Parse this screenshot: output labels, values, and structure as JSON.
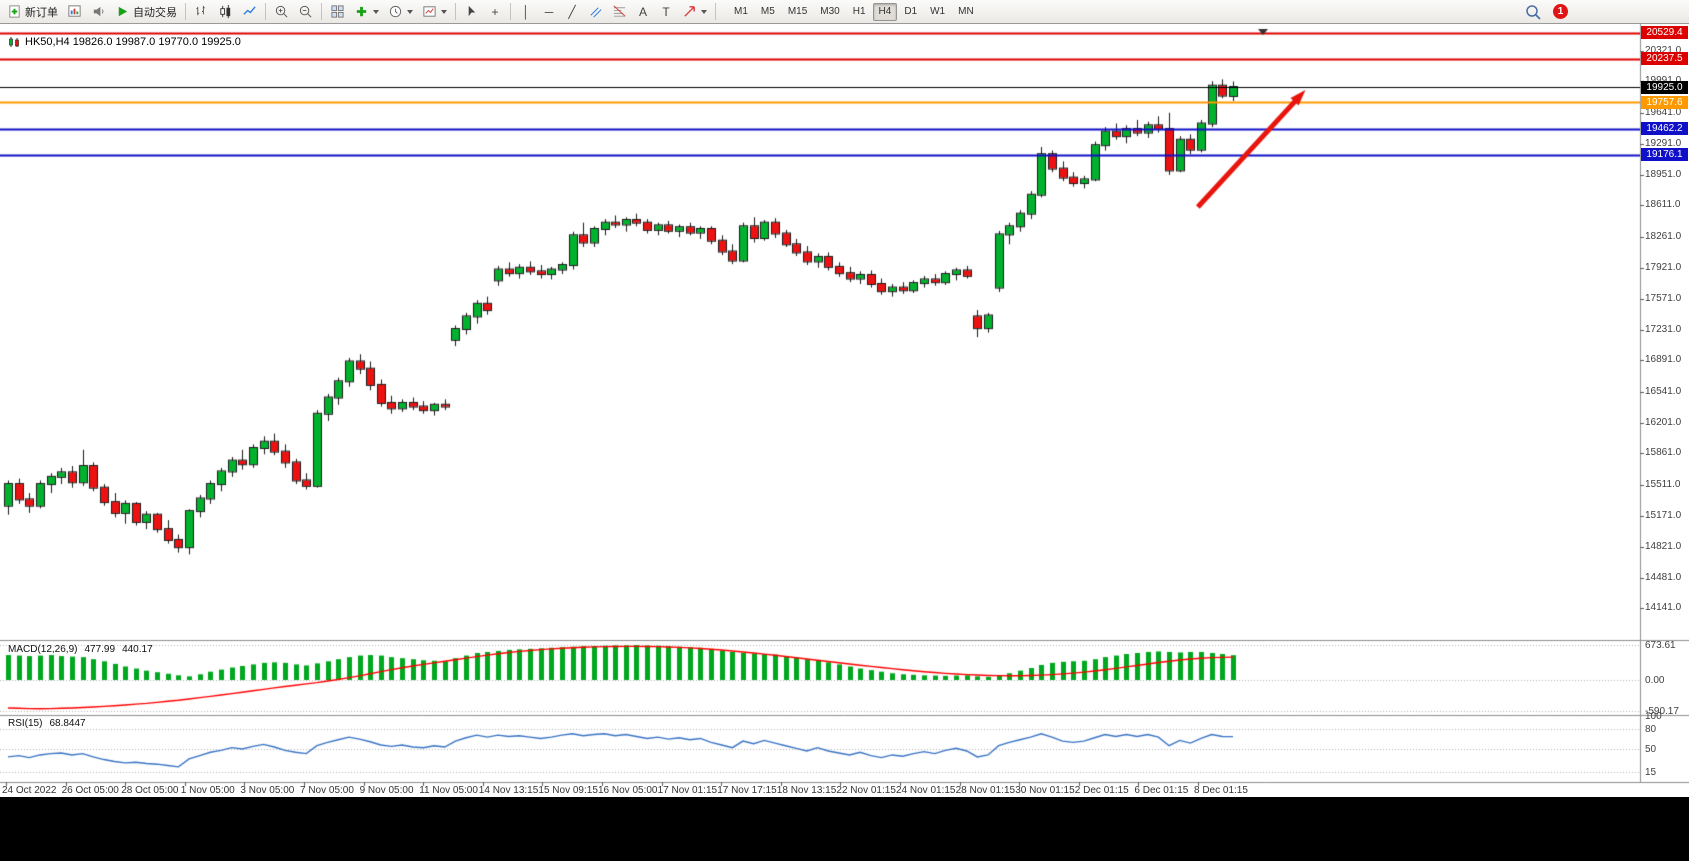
{
  "toolbar": {
    "new_order": "新订单",
    "autotrade": "自动交易",
    "timeframes": [
      "M1",
      "M5",
      "M15",
      "M30",
      "H1",
      "H4",
      "D1",
      "W1",
      "MN"
    ],
    "active_timeframe": "H4",
    "notification": "1",
    "glyphs": {
      "vertical_line": "│",
      "horizontal_line": "─",
      "trendline": "╱",
      "crosshair": "+",
      "text": "A",
      "text_label": "T"
    }
  },
  "chart": {
    "title": "HK50,H4 19826.0 19987.0 19770.0 19925.0",
    "symbol": "HK50",
    "period": "H4",
    "open": "19826.0",
    "high": "19987.0",
    "low": "19770.0",
    "close": "19925.0"
  },
  "chart_data": {
    "type": "candlestick",
    "symbol": "HK50",
    "timeframe": "H4",
    "y_range": [
      13790,
      20580
    ],
    "colors": {
      "bull": "#00b22d",
      "bear": "#ee1111",
      "wick": "#1a1a1a",
      "macd_hist": "#00a81f",
      "macd_signal": "#ff0000",
      "rsi": "#3973c4",
      "resistance": "#dd0000",
      "support": "#1010c8",
      "pivot": "#ff9900",
      "current": "#000000"
    },
    "price_ticks": [
      "20321.0",
      "19991.0",
      "19641.0",
      "19291.0",
      "18951.0",
      "18611.0",
      "18261.0",
      "17921.0",
      "17571.0",
      "17231.0",
      "16891.0",
      "16541.0",
      "16201.0",
      "15861.0",
      "15511.0",
      "15171.0",
      "14821.0",
      "14481.0",
      "14141.0"
    ],
    "time_labels": [
      "24 Oct 2022",
      "26 Oct 05:00",
      "28 Oct 05:00",
      "1 Nov 05:00",
      "3 Nov 05:00",
      "7 Nov 05:00",
      "9 Nov 05:00",
      "11 Nov 05:00",
      "14 Nov 13:15",
      "15 Nov 09:15",
      "16 Nov 05:00",
      "17 Nov 01:15",
      "17 Nov 17:15",
      "18 Nov 13:15",
      "22 Nov 01:15",
      "24 Nov 01:15",
      "28 Nov 01:15",
      "30 Nov 01:15",
      "2 Dec 01:15",
      "6 Dec 01:15",
      "8 Dec 01:15"
    ],
    "hlines": [
      {
        "price": 20529.4,
        "label": "20529.4",
        "color": "#dd0000",
        "width": 2
      },
      {
        "price": 20237.5,
        "label": "20237.5",
        "color": "#dd0000",
        "width": 2
      },
      {
        "price": 19925.0,
        "label": "19925.0",
        "color": "#000000",
        "width": 1
      },
      {
        "price": 19757.6,
        "label": "19757.6",
        "color": "#ff9900",
        "width": 2
      },
      {
        "price": 19462.2,
        "label": "19462.2",
        "color": "#1010c8",
        "width": 2
      },
      {
        "price": 19176.1,
        "label": "19176.1",
        "color": "#1010c8",
        "width": 2
      }
    ],
    "annotations": [
      {
        "type": "arrow",
        "from_index": 111.7,
        "from_price": 18594,
        "to_index": 121.8,
        "to_price": 19892,
        "color": "#e8150d"
      }
    ],
    "candles": [
      [
        15280,
        15560,
        15180,
        15520
      ],
      [
        15520,
        15580,
        15300,
        15350
      ],
      [
        15350,
        15420,
        15200,
        15280
      ],
      [
        15280,
        15560,
        15250,
        15520
      ],
      [
        15520,
        15640,
        15420,
        15600
      ],
      [
        15600,
        15700,
        15520,
        15650
      ],
      [
        15650,
        15720,
        15480,
        15540
      ],
      [
        15540,
        15900,
        15500,
        15720
      ],
      [
        15720,
        15760,
        15440,
        15480
      ],
      [
        15480,
        15520,
        15280,
        15320
      ],
      [
        15320,
        15420,
        15150,
        15200
      ],
      [
        15200,
        15340,
        15080,
        15300
      ],
      [
        15300,
        15320,
        15060,
        15100
      ],
      [
        15100,
        15220,
        15020,
        15180
      ],
      [
        15180,
        15200,
        14980,
        15020
      ],
      [
        15020,
        15120,
        14860,
        14900
      ],
      [
        14900,
        14960,
        14760,
        14820
      ],
      [
        14820,
        15240,
        14740,
        15220
      ],
      [
        15220,
        15400,
        15150,
        15360
      ],
      [
        15360,
        15560,
        15300,
        15520
      ],
      [
        15520,
        15700,
        15440,
        15660
      ],
      [
        15660,
        15820,
        15600,
        15780
      ],
      [
        15780,
        15900,
        15680,
        15740
      ],
      [
        15740,
        15960,
        15700,
        15920
      ],
      [
        15920,
        16050,
        15850,
        15990
      ],
      [
        15990,
        16080,
        15840,
        15880
      ],
      [
        15880,
        15960,
        15700,
        15760
      ],
      [
        15760,
        15800,
        15520,
        15560
      ],
      [
        15560,
        15640,
        15460,
        15500
      ],
      [
        15500,
        16340,
        15480,
        16300
      ],
      [
        16300,
        16520,
        16220,
        16480
      ],
      [
        16480,
        16700,
        16400,
        16660
      ],
      [
        16660,
        16920,
        16600,
        16880
      ],
      [
        16880,
        16960,
        16740,
        16800
      ],
      [
        16800,
        16880,
        16560,
        16620
      ],
      [
        16620,
        16680,
        16380,
        16420
      ],
      [
        16420,
        16500,
        16300,
        16360
      ],
      [
        16360,
        16460,
        16320,
        16420
      ],
      [
        16420,
        16480,
        16340,
        16380
      ],
      [
        16380,
        16440,
        16300,
        16340
      ],
      [
        16340,
        16420,
        16280,
        16400
      ],
      [
        16400,
        16460,
        16340,
        16380
      ],
      [
        17120,
        17280,
        17050,
        17240
      ],
      [
        17240,
        17420,
        17180,
        17380
      ],
      [
        17380,
        17560,
        17300,
        17520
      ],
      [
        17520,
        17600,
        17400,
        17450
      ],
      [
        17780,
        17940,
        17720,
        17900
      ],
      [
        17900,
        17980,
        17820,
        17860
      ],
      [
        17860,
        17960,
        17800,
        17920
      ],
      [
        17920,
        17990,
        17840,
        17880
      ],
      [
        17880,
        17950,
        17800,
        17850
      ],
      [
        17850,
        17930,
        17790,
        17900
      ],
      [
        17900,
        17980,
        17850,
        17950
      ],
      [
        17950,
        18320,
        17900,
        18280
      ],
      [
        18280,
        18420,
        18150,
        18200
      ],
      [
        18200,
        18380,
        18150,
        18350
      ],
      [
        18350,
        18460,
        18280,
        18420
      ],
      [
        18420,
        18500,
        18360,
        18400
      ],
      [
        18400,
        18480,
        18320,
        18450
      ],
      [
        18450,
        18520,
        18380,
        18420
      ],
      [
        18420,
        18460,
        18300,
        18340
      ],
      [
        18340,
        18420,
        18280,
        18390
      ],
      [
        18390,
        18440,
        18300,
        18330
      ],
      [
        18330,
        18400,
        18260,
        18370
      ],
      [
        18370,
        18420,
        18280,
        18310
      ],
      [
        18310,
        18380,
        18240,
        18350
      ],
      [
        18350,
        18380,
        18180,
        18220
      ],
      [
        18220,
        18280,
        18060,
        18100
      ],
      [
        18100,
        18180,
        17960,
        18000
      ],
      [
        18000,
        18420,
        17980,
        18380
      ],
      [
        18380,
        18480,
        18200,
        18250
      ],
      [
        18250,
        18450,
        18220,
        18420
      ],
      [
        18420,
        18470,
        18250,
        18300
      ],
      [
        18300,
        18340,
        18150,
        18180
      ],
      [
        18180,
        18240,
        18050,
        18090
      ],
      [
        18090,
        18160,
        17950,
        17990
      ],
      [
        17990,
        18080,
        17920,
        18040
      ],
      [
        18040,
        18090,
        17890,
        17930
      ],
      [
        17930,
        17980,
        17820,
        17860
      ],
      [
        17860,
        17930,
        17760,
        17800
      ],
      [
        17800,
        17880,
        17740,
        17840
      ],
      [
        17840,
        17890,
        17700,
        17740
      ],
      [
        17740,
        17800,
        17620,
        17660
      ],
      [
        17660,
        17740,
        17600,
        17700
      ],
      [
        17700,
        17760,
        17630,
        17670
      ],
      [
        17670,
        17780,
        17640,
        17750
      ],
      [
        17750,
        17830,
        17700,
        17790
      ],
      [
        17790,
        17850,
        17720,
        17760
      ],
      [
        17760,
        17880,
        17730,
        17850
      ],
      [
        17850,
        17920,
        17780,
        17890
      ],
      [
        17890,
        17940,
        17800,
        17830
      ],
      [
        17380,
        17450,
        17150,
        17250
      ],
      [
        17250,
        17420,
        17200,
        17390
      ],
      [
        17700,
        18330,
        17650,
        18290
      ],
      [
        18290,
        18420,
        18180,
        18380
      ],
      [
        18380,
        18560,
        18320,
        18520
      ],
      [
        18520,
        18770,
        18460,
        18730
      ],
      [
        18730,
        19260,
        18700,
        19180
      ],
      [
        19180,
        19220,
        18980,
        19020
      ],
      [
        19020,
        19100,
        18880,
        18920
      ],
      [
        18920,
        18980,
        18820,
        18860
      ],
      [
        18860,
        18940,
        18800,
        18900
      ],
      [
        18900,
        19320,
        18880,
        19280
      ],
      [
        19280,
        19480,
        19220,
        19430
      ],
      [
        19430,
        19520,
        19340,
        19380
      ],
      [
        19380,
        19500,
        19300,
        19460
      ],
      [
        19460,
        19560,
        19380,
        19420
      ],
      [
        19420,
        19540,
        19360,
        19500
      ],
      [
        19500,
        19600,
        19420,
        19460
      ],
      [
        19460,
        19640,
        18950,
        19000
      ],
      [
        19000,
        19380,
        18980,
        19340
      ],
      [
        19340,
        19400,
        19180,
        19230
      ],
      [
        19230,
        19560,
        19200,
        19520
      ],
      [
        19520,
        19990,
        19480,
        19940
      ],
      [
        19940,
        20010,
        19800,
        19830
      ],
      [
        19826,
        19987,
        19770,
        19925
      ]
    ],
    "macd": {
      "name": "MACD(12,26,9)",
      "main": "477.99",
      "signal_value": "440.17",
      "axis": [
        "673.61",
        "0.00",
        "-590.17"
      ],
      "hist": [
        480,
        470,
        460,
        470,
        480,
        460,
        450,
        440,
        400,
        360,
        310,
        260,
        220,
        180,
        150,
        120,
        90,
        70,
        110,
        160,
        200,
        240,
        270,
        300,
        330,
        340,
        330,
        300,
        280,
        320,
        360,
        400,
        440,
        470,
        480,
        470,
        440,
        420,
        400,
        380,
        370,
        360,
        420,
        470,
        520,
        540,
        560,
        580,
        590,
        600,
        610,
        620,
        630,
        640,
        650,
        655,
        660,
        665,
        668,
        673,
        665,
        660,
        650,
        640,
        630,
        620,
        600,
        570,
        540,
        520,
        510,
        500,
        490,
        460,
        430,
        400,
        370,
        340,
        300,
        260,
        220,
        190,
        160,
        130,
        110,
        100,
        90,
        85,
        80,
        85,
        90,
        70,
        60,
        90,
        130,
        180,
        230,
        290,
        330,
        350,
        360,
        370,
        400,
        440,
        470,
        500,
        520,
        540,
        550,
        540,
        530,
        540,
        540,
        520,
        500,
        478
      ],
      "signal": [
        -540,
        -545,
        -550,
        -552,
        -550,
        -545,
        -538,
        -530,
        -520,
        -508,
        -495,
        -480,
        -465,
        -450,
        -430,
        -410,
        -390,
        -365,
        -340,
        -315,
        -290,
        -262,
        -235,
        -208,
        -180,
        -152,
        -125,
        -100,
        -75,
        -50,
        -20,
        10,
        45,
        80,
        120,
        160,
        200,
        235,
        270,
        300,
        330,
        360,
        390,
        420,
        450,
        478,
        505,
        528,
        550,
        568,
        585,
        600,
        612,
        622,
        630,
        637,
        642,
        646,
        648,
        648,
        646,
        642,
        636,
        628,
        618,
        606,
        592,
        576,
        558,
        540,
        520,
        498,
        475,
        452,
        428,
        404,
        380,
        356,
        332,
        308,
        285,
        262,
        240,
        218,
        198,
        178,
        160,
        143,
        128,
        115,
        104,
        95,
        88,
        84,
        82,
        83,
        87,
        94,
        104,
        117,
        133,
        152,
        174,
        198,
        224,
        252,
        280,
        308,
        336,
        362,
        386,
        404,
        420,
        430,
        436,
        440
      ]
    },
    "rsi": {
      "name": "RSI(15)",
      "value": "68.8447",
      "axis": [
        "100",
        "80",
        "50",
        "15"
      ],
      "levels": [
        80,
        50,
        15
      ],
      "series": [
        38,
        40,
        37,
        41,
        43,
        44,
        41,
        43,
        38,
        34,
        31,
        29,
        30,
        28,
        27,
        25,
        23,
        35,
        40,
        45,
        48,
        52,
        50,
        54,
        57,
        53,
        48,
        45,
        43,
        55,
        60,
        64,
        68,
        65,
        61,
        56,
        54,
        56,
        53,
        52,
        55,
        53,
        62,
        67,
        71,
        68,
        71,
        69,
        70,
        68,
        66,
        68,
        71,
        73,
        70,
        72,
        73,
        70,
        72,
        69,
        66,
        68,
        65,
        67,
        64,
        66,
        60,
        56,
        52,
        62,
        58,
        63,
        59,
        55,
        51,
        47,
        52,
        47,
        44,
        41,
        45,
        40,
        37,
        41,
        39,
        43,
        46,
        43,
        48,
        51,
        47,
        38,
        41,
        55,
        60,
        64,
        68,
        73,
        68,
        62,
        60,
        62,
        67,
        72,
        69,
        72,
        69,
        72,
        68,
        55,
        63,
        59,
        66,
        72,
        69,
        68.8
      ]
    }
  }
}
